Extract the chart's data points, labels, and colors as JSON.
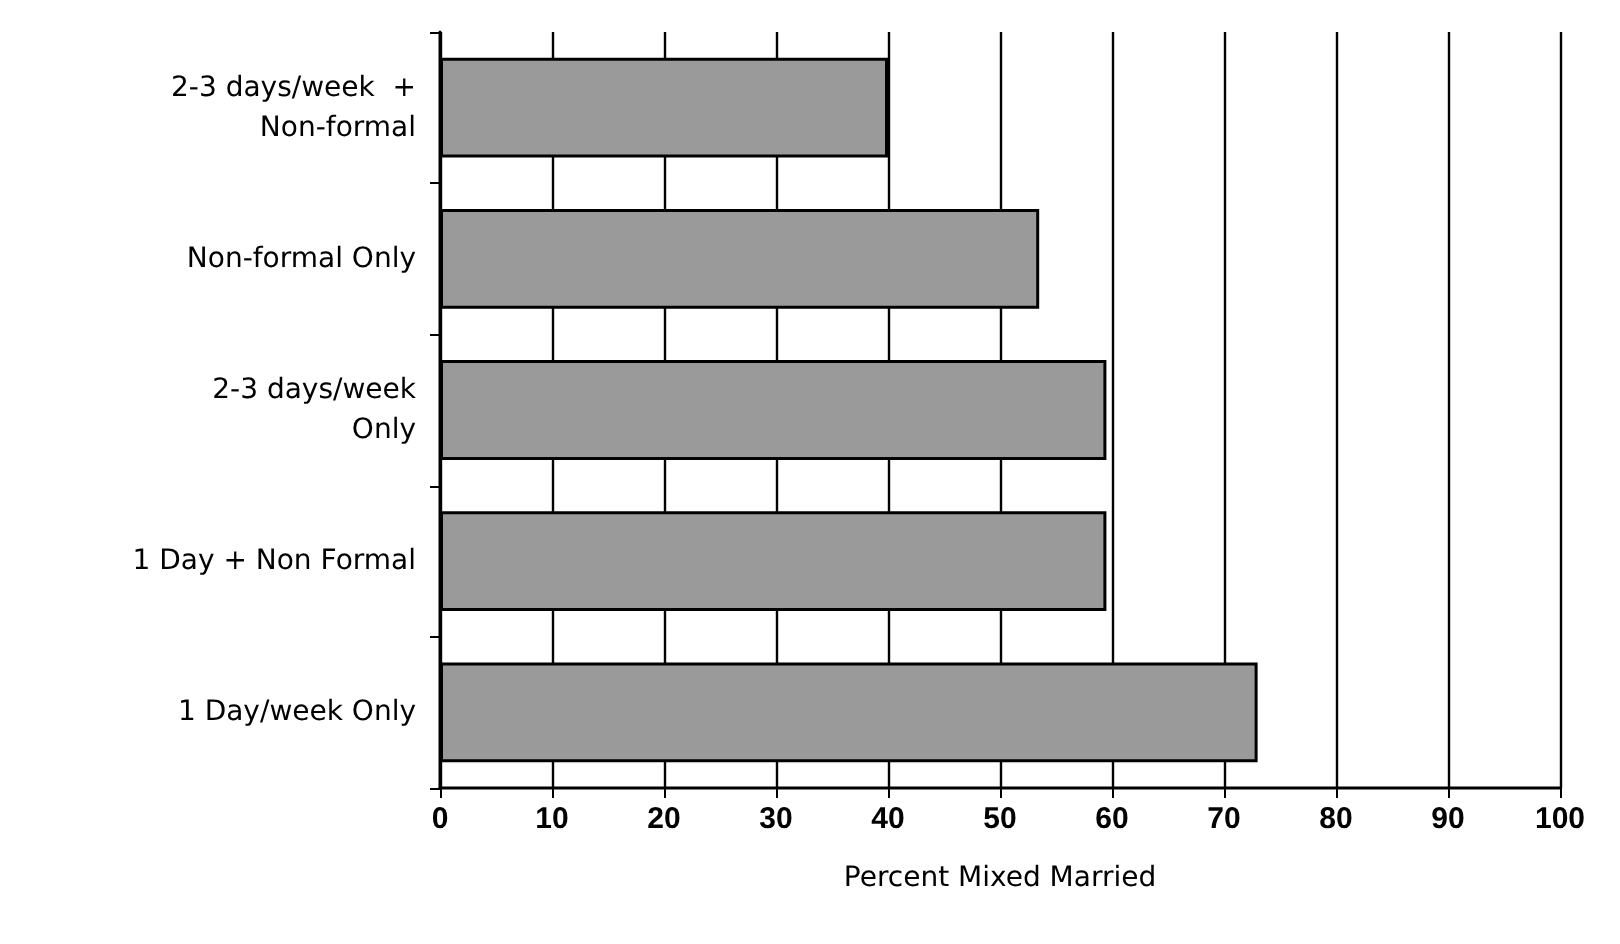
{
  "chart_data": {
    "type": "bar",
    "orientation": "horizontal",
    "xlabel": "Percent Mixed Married",
    "categories": [
      "2-3 days/week  +\nNon-formal",
      "Non-formal Only",
      "2-3 days/week\nOnly",
      "1 Day + Non Formal",
      "1 Day/week Only"
    ],
    "values": [
      40,
      53.5,
      59.5,
      59.5,
      73
    ],
    "color": "#9a9a9a",
    "xlim": [
      0,
      100
    ],
    "xticks": [
      0,
      10,
      20,
      30,
      40,
      50,
      60,
      70,
      80,
      90,
      100
    ],
    "grid": "x"
  }
}
